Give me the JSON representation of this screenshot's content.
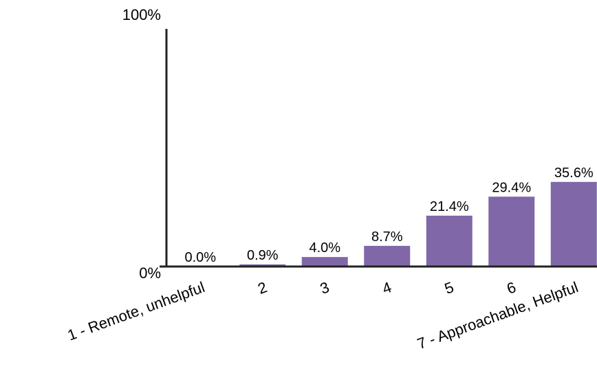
{
  "chart_data": {
    "type": "bar",
    "categories": [
      "1 - Remote, unhelpful",
      "2",
      "3",
      "4",
      "5",
      "6",
      "7 - Approachable, Helpful"
    ],
    "values": [
      0.0,
      0.9,
      4.0,
      8.7,
      21.4,
      29.4,
      35.6
    ],
    "data_labels": [
      "0.0%",
      "0.9%",
      "4.0%",
      "8.7%",
      "21.4%",
      "29.4%",
      "35.6%"
    ],
    "ylim": [
      0,
      100
    ],
    "y_ticks": [
      "0%",
      "100%"
    ],
    "bar_color": "#8068a8",
    "grid": false
  }
}
